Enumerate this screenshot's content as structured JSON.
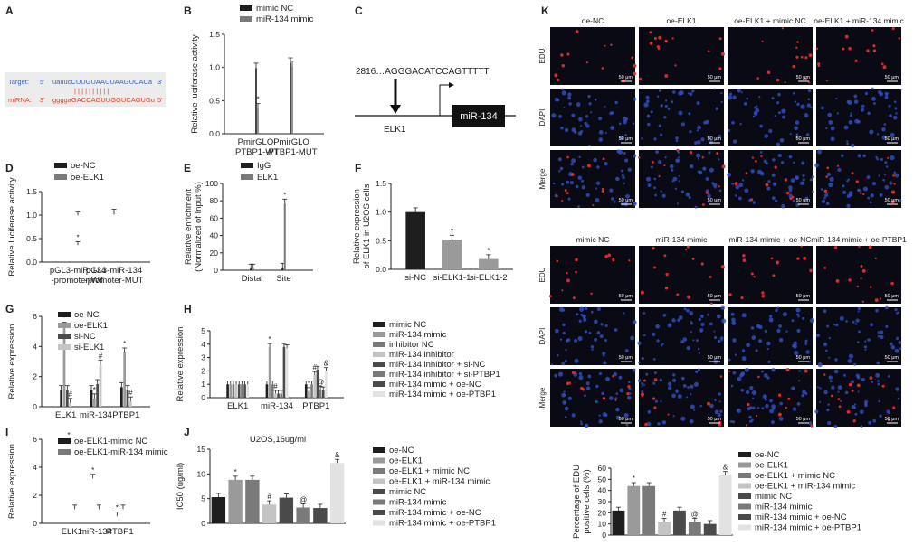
{
  "colors": {
    "black": "#1e1e1e",
    "dark": "#4a4a4a",
    "mid": "#7a7a7a",
    "grey": "#9a9a9a",
    "light": "#c4c4c4",
    "pale": "#e2e2e2",
    "blueText": "#3a5fc0",
    "redText": "#e0402a",
    "micro": "#0a0a14"
  },
  "panels": {
    "A": "A",
    "B": "B",
    "C": "C",
    "D": "D",
    "E": "E",
    "F": "F",
    "G": "G",
    "H": "H",
    "I": "I",
    "J": "J",
    "K": "K"
  },
  "seq": {
    "target_label": "Target:",
    "mirna_label": "miRNA:",
    "five": "5'",
    "three": "3'",
    "target_seq": "uauucCUUGUAAUUAAGUCACa",
    "mirna_seq": "ggggaGACCAGUUGGUCAGUGu",
    "bars": "| | | | |  | | | | |"
  },
  "promoter": {
    "pos": "2816…AGGGACATCCAGTTTTT",
    "tf": "ELK1",
    "gene": "miR-134"
  },
  "panelK": {
    "cols_top": [
      "oe-NC",
      "oe-ELK1",
      "oe-ELK1 + mimic NC",
      "oe-ELK1 + miR-134 mimic"
    ],
    "cols_bottom": [
      "mimic NC",
      "miR-134 mimic",
      "miR-134 mimic + oe-NC",
      "miR-134 mimic + oe-PTBP1"
    ],
    "rows": [
      "EDU",
      "DAPI",
      "Merge"
    ],
    "scale": "50 μm"
  },
  "chart_data": [
    {
      "id": "B",
      "type": "bar",
      "ylabel": "Relative luciferase activity",
      "ylim": [
        0,
        1.5
      ],
      "yticks": [
        "0.0",
        "0.5",
        "1.0",
        "1.5"
      ],
      "categories": [
        "PmirGLO-\nPTBP1-WT",
        "PmirGLO\n-PTBP1-MUT"
      ],
      "series": [
        {
          "name": "mimic NC",
          "values": [
            0.99,
            1.07
          ]
        },
        {
          "name": "miR-134 mimic",
          "values": [
            0.38,
            1.02
          ]
        }
      ],
      "marks": [
        [
          "",
          ""
        ],
        [
          "*",
          ""
        ]
      ]
    },
    {
      "id": "D",
      "type": "bar",
      "ylabel": "Relative luciferase activity",
      "ylim": [
        0,
        1.5
      ],
      "yticks": [
        "0.0",
        "0.5",
        "1.0",
        "1.5"
      ],
      "categories": [
        "pGL3-miR-134\n-promoter-WT",
        "pGL3-miR-134\n-promoter-MUT"
      ],
      "series": [
        {
          "name": "oe-NC",
          "values": [
            0.99,
            1.05
          ]
        },
        {
          "name": "oe-ELK1",
          "values": [
            0.36,
            1.01
          ]
        }
      ],
      "marks": [
        [
          "",
          ""
        ],
        [
          "*",
          ""
        ]
      ]
    },
    {
      "id": "E",
      "type": "bar",
      "ylabel": "Relative enrichment\n(Normalized of Input %)",
      "ylim": [
        0,
        100
      ],
      "yticks": [
        "0",
        "20",
        "40",
        "60",
        "80",
        "100"
      ],
      "categories": [
        "Distal",
        "Site"
      ],
      "series": [
        {
          "name": "IgG",
          "values": [
            2,
            3
          ]
        },
        {
          "name": "ELK1",
          "values": [
            2,
            77
          ]
        }
      ],
      "marks": [
        [
          "",
          ""
        ],
        [
          "",
          "*"
        ]
      ]
    },
    {
      "id": "F",
      "type": "bar",
      "ylabel": "Relative expression\nof ELK1 in U2OS cells",
      "ylim": [
        0,
        1.5
      ],
      "yticks": [
        "0.0",
        "0.5",
        "1.0",
        "1.5"
      ],
      "categories": [
        "si-NC",
        "si-ELK1-1",
        "si-ELK1-2"
      ],
      "series": [
        {
          "name": "",
          "values": [
            1.0,
            0.52,
            0.18
          ]
        }
      ],
      "marks": [
        [
          "",
          "*",
          "*"
        ]
      ]
    },
    {
      "id": "G",
      "type": "bar",
      "ylabel": "Relative expression",
      "ylim": [
        0,
        6
      ],
      "yticks": [
        "0",
        "2",
        "4",
        "6"
      ],
      "categories": [
        "ELK1",
        "miR-134",
        "PTBP1"
      ],
      "series": [
        {
          "name": "oe-NC",
          "values": [
            1.1,
            1.1,
            1.3
          ]
        },
        {
          "name": "oe-ELK1",
          "values": [
            5.3,
            0.55,
            3.6
          ]
        },
        {
          "name": "si-NC",
          "values": [
            1.1,
            1.5,
            1.1
          ]
        },
        {
          "name": "si-ELK1",
          "values": [
            0.25,
            2.8,
            0.35
          ]
        }
      ],
      "marks": [
        [
          "",
          "",
          "",
          ""
        ],
        [
          "*",
          "*",
          "*",
          ""
        ],
        [
          "",
          "",
          "",
          ""
        ],
        [
          "#",
          "#",
          "#",
          ""
        ]
      ]
    },
    {
      "id": "H",
      "type": "bar",
      "ylabel": "Relative expression",
      "ylim": [
        0,
        5
      ],
      "yticks": [
        "0",
        "1",
        "2",
        "3",
        "4",
        "5"
      ],
      "categories": [
        "ELK1",
        "miR-134",
        "PTBP1"
      ],
      "series": [
        {
          "name": "mimic NC",
          "values": [
            1.0,
            1.0,
            1.0
          ]
        },
        {
          "name": "miR-134 mimic",
          "values": [
            1.0,
            3.8,
            0.5
          ]
        },
        {
          "name": "inhibitor NC",
          "values": [
            1.0,
            1.0,
            1.0
          ]
        },
        {
          "name": "miR-134 inhibitor",
          "values": [
            1.0,
            0.3,
            1.7
          ]
        },
        {
          "name": "miR-134 inhibitor + si-NC",
          "values": [
            1.0,
            0.3,
            2.1
          ]
        },
        {
          "name": "miR-134 inhibitor + si-PTBP1",
          "values": [
            1.0,
            0.3,
            0.6
          ]
        },
        {
          "name": "miR-134 mimic + oe-NC",
          "values": [
            1.0,
            3.8,
            0.55
          ]
        },
        {
          "name": "miR-134 mimic + oe-PTBP1",
          "values": [
            1.0,
            3.7,
            2.0
          ]
        }
      ],
      "marks": [
        [
          "",
          "",
          ""
        ],
        [
          "",
          "*",
          "*"
        ],
        [
          "",
          "",
          ""
        ],
        [
          "",
          "#",
          "#"
        ],
        [
          "",
          "",
          ""
        ],
        [
          "",
          "",
          "@"
        ],
        [
          "",
          "",
          ""
        ],
        [
          "",
          "",
          "&"
        ]
      ]
    },
    {
      "id": "I",
      "type": "bar",
      "ylabel": "Relative expression",
      "ylim": [
        0,
        6
      ],
      "yticks": [
        "0",
        "2",
        "4",
        "6"
      ],
      "categories": [
        "ELK1",
        "miR-134",
        "PTBP1"
      ],
      "series": [
        {
          "name": "oe-ELK1-mimic NC",
          "values": [
            1.0,
            1.0,
            1.0
          ]
        },
        {
          "name": "oe-ELK1-miR-134 mimic",
          "values": [
            5.7,
            3.2,
            0.5
          ]
        }
      ],
      "marks": [
        [
          "",
          "",
          ""
        ],
        [
          "*",
          "*",
          "*"
        ]
      ]
    },
    {
      "id": "J",
      "type": "bar",
      "title": "U2OS,16ug/ml",
      "ylabel": "IC50 (ug/ml)",
      "ylim": [
        0,
        15
      ],
      "yticks": [
        "0",
        "5",
        "10",
        "15"
      ],
      "categories": [
        ""
      ],
      "series": [
        {
          "name": "oe-NC",
          "values": [
            5.3
          ]
        },
        {
          "name": "oe-ELK1",
          "values": [
            8.8
          ]
        },
        {
          "name": "oe-ELK1 + mimic NC",
          "values": [
            8.8
          ]
        },
        {
          "name": "oe-ELK1 + miR-134 mimic",
          "values": [
            3.8
          ]
        },
        {
          "name": "mimic NC",
          "values": [
            5.2
          ]
        },
        {
          "name": "miR-134 mimic",
          "values": [
            3.2
          ]
        },
        {
          "name": "miR-134 mimic + oe-NC",
          "values": [
            3.1
          ]
        },
        {
          "name": "miR-134 mimic + oe-PTBP1",
          "values": [
            12.2
          ]
        }
      ],
      "marks": [
        [
          ""
        ],
        [
          "*"
        ],
        [
          ""
        ],
        [
          "#"
        ],
        [
          ""
        ],
        [
          "@"
        ],
        [
          ""
        ],
        [
          "&"
        ]
      ]
    },
    {
      "id": "K",
      "type": "bar",
      "ylabel": "Percentage of EDU\npositive cells (%)",
      "ylim": [
        0,
        60
      ],
      "yticks": [
        "0",
        "10",
        "20",
        "30",
        "40",
        "50",
        "60"
      ],
      "categories": [
        ""
      ],
      "series": [
        {
          "name": "oe-NC",
          "values": [
            22
          ]
        },
        {
          "name": "oe-ELK1",
          "values": [
            44
          ]
        },
        {
          "name": "oe-ELK1 + mimic NC",
          "values": [
            44
          ]
        },
        {
          "name": "oe-ELK1 + miR-134 mimic",
          "values": [
            12
          ]
        },
        {
          "name": "mimic NC",
          "values": [
            22
          ]
        },
        {
          "name": "miR-134 mimic",
          "values": [
            12
          ]
        },
        {
          "name": "miR-134 mimic + oe-NC",
          "values": [
            10
          ]
        },
        {
          "name": "miR-134 mimic + oe-PTBP1",
          "values": [
            54
          ]
        }
      ],
      "marks": [
        [
          ""
        ],
        [
          "*"
        ],
        [
          ""
        ],
        [
          "#"
        ],
        [
          ""
        ],
        [
          "@"
        ],
        [
          ""
        ],
        [
          "&"
        ]
      ]
    }
  ]
}
